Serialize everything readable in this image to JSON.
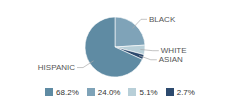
{
  "chart_data": {
    "type": "pie",
    "categories": [
      "BLACK",
      "WHITE",
      "ASIAN",
      "HISPANIC"
    ],
    "values": [
      24.0,
      5.1,
      2.7,
      68.2
    ],
    "colors": [
      "#7fa3b8",
      "#b8cfd8",
      "#2d4a6e",
      "#5f8ba3"
    ],
    "legend": "bottom",
    "legend_labels": [
      "68.2%",
      "24.0%",
      "5.1%",
      "2.7%"
    ],
    "legend_colors": [
      "#5f8ba3",
      "#7fa3b8",
      "#b8cfd8",
      "#2d4a6e"
    ]
  }
}
